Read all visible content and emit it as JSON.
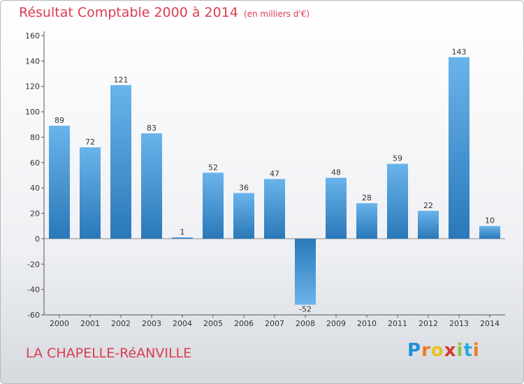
{
  "header": {
    "title": "Résultat Comptable 2000 à 2014",
    "subtitle": "(en milliers d'€)"
  },
  "footer": {
    "place": "LA CHAPELLE-RéANVILLE",
    "logo_letters": [
      "P",
      "r",
      "o",
      "x",
      "i",
      "t",
      "i"
    ],
    "logo_colors": [
      "#1f8fd6",
      "#ee7d1f",
      "#e8c21e",
      "#d63a34",
      "#8dc63f",
      "#2aa9e0",
      "#ee7d1f"
    ]
  },
  "colors": {
    "bar_light": "#6ab4ec",
    "bar_dark": "#2a78b8",
    "text": "#333333",
    "accent": "#dc3c50"
  },
  "chart_data": {
    "type": "bar",
    "title": "Résultat Comptable 2000 à 2014",
    "xlabel": "",
    "ylabel": "",
    "categories": [
      "2000",
      "2001",
      "2002",
      "2003",
      "2004",
      "2005",
      "2006",
      "2007",
      "2008",
      "2009",
      "2010",
      "2011",
      "2012",
      "2013",
      "2014"
    ],
    "values": [
      89,
      72,
      121,
      83,
      1,
      52,
      36,
      47,
      -52,
      48,
      28,
      59,
      22,
      143,
      10
    ],
    "ylim": [
      -60,
      160
    ],
    "yticks": [
      -60,
      -40,
      -20,
      0,
      20,
      40,
      60,
      80,
      100,
      120,
      140,
      160
    ],
    "grid": false,
    "legend": "none"
  }
}
